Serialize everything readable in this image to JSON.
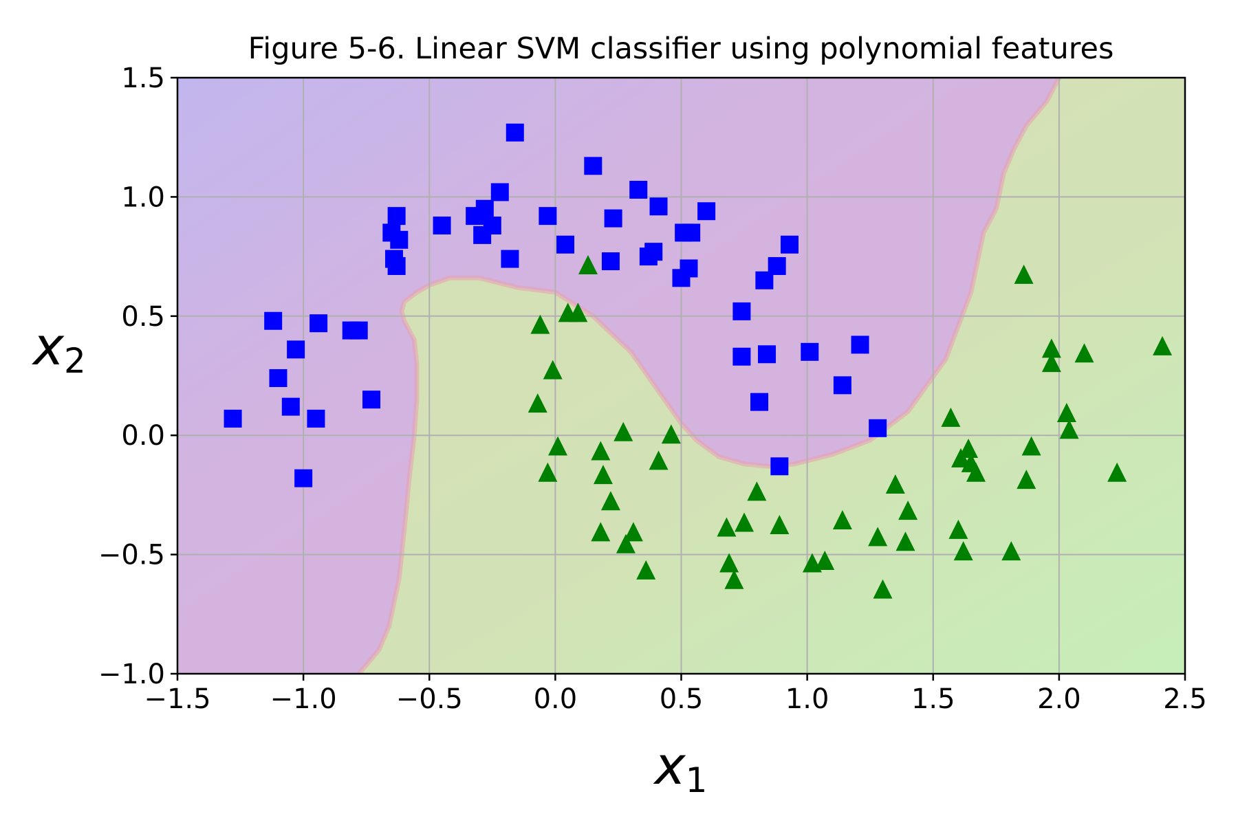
{
  "chart_data": {
    "type": "scatter",
    "title": "Figure 5-6. Linear SVM classifier using polynomial features",
    "xlabel_main": "x",
    "xlabel_sub": "1",
    "ylabel_main": "x",
    "ylabel_sub": "2",
    "xlim": [
      -1.5,
      2.5
    ],
    "ylim": [
      -1.0,
      1.5
    ],
    "xticks": [
      -1.5,
      -1.0,
      -0.5,
      0.0,
      0.5,
      1.0,
      1.5,
      2.0,
      2.5
    ],
    "yticks": [
      -1.0,
      -0.5,
      0.0,
      0.5,
      1.0,
      1.5
    ],
    "xtick_labels": [
      "−1.5",
      "−1.0",
      "−0.5",
      "0.0",
      "0.5",
      "1.0",
      "1.5",
      "2.0",
      "2.5"
    ],
    "ytick_labels": [
      "−1.0",
      "−0.5",
      "0.0",
      "0.5",
      "1.0",
      "1.5"
    ],
    "grid": true,
    "colors": {
      "class0_marker": "#0000ff",
      "class1_marker": "#008000",
      "class0_region": "#d3b4e0",
      "class1_region": "#d5e0b8",
      "boundary": "#e8a0b0"
    },
    "decision_boundary": {
      "x": [
        -0.78,
        -0.7,
        -0.66,
        -0.62,
        -0.6,
        -0.58,
        -0.56,
        -0.55,
        -0.55,
        -0.56,
        -0.58,
        -0.6,
        -0.61,
        -0.6,
        -0.55,
        -0.5,
        -0.42,
        -0.3,
        -0.15,
        0.0,
        0.15,
        0.3,
        0.4,
        0.5,
        0.56,
        0.65,
        0.75,
        0.85,
        0.95,
        1.1,
        1.25,
        1.4,
        1.55,
        1.65,
        1.7,
        1.75,
        1.76,
        1.78,
        1.82,
        1.87,
        1.95,
        2.0
      ],
      "y": [
        -1.0,
        -0.9,
        -0.8,
        -0.6,
        -0.4,
        -0.18,
        0.0,
        0.15,
        0.3,
        0.4,
        0.44,
        0.48,
        0.52,
        0.56,
        0.6,
        0.63,
        0.66,
        0.66,
        0.62,
        0.6,
        0.5,
        0.35,
        0.2,
        0.05,
        -0.02,
        -0.09,
        -0.12,
        -0.13,
        -0.12,
        -0.08,
        -0.02,
        0.1,
        0.32,
        0.6,
        0.85,
        0.95,
        1.0,
        1.1,
        1.2,
        1.3,
        1.4,
        1.5
      ]
    },
    "series": [
      {
        "name": "",
        "marker": "square",
        "points": [
          [
            -1.28,
            0.07
          ],
          [
            -1.12,
            0.48
          ],
          [
            -1.1,
            0.24
          ],
          [
            -1.05,
            0.12
          ],
          [
            -1.03,
            0.36
          ],
          [
            -1.0,
            -0.18
          ],
          [
            -0.95,
            0.07
          ],
          [
            -0.94,
            0.47
          ],
          [
            -0.81,
            0.44
          ],
          [
            -0.78,
            0.44
          ],
          [
            -0.73,
            0.15
          ],
          [
            -0.65,
            0.85
          ],
          [
            -0.64,
            0.74
          ],
          [
            -0.63,
            0.92
          ],
          [
            -0.62,
            0.82
          ],
          [
            -0.63,
            0.71
          ],
          [
            -0.45,
            0.88
          ],
          [
            -0.32,
            0.92
          ],
          [
            -0.29,
            0.84
          ],
          [
            -0.28,
            0.95
          ],
          [
            -0.25,
            0.88
          ],
          [
            -0.22,
            1.02
          ],
          [
            -0.18,
            0.74
          ],
          [
            -0.16,
            1.27
          ],
          [
            -0.03,
            0.92
          ],
          [
            0.04,
            0.8
          ],
          [
            0.15,
            1.13
          ],
          [
            0.22,
            0.73
          ],
          [
            0.23,
            0.91
          ],
          [
            0.33,
            1.03
          ],
          [
            0.37,
            0.75
          ],
          [
            0.39,
            0.77
          ],
          [
            0.41,
            0.96
          ],
          [
            0.5,
            0.66
          ],
          [
            0.51,
            0.85
          ],
          [
            0.53,
            0.7
          ],
          [
            0.54,
            0.85
          ],
          [
            0.6,
            0.94
          ],
          [
            0.74,
            0.52
          ],
          [
            0.74,
            0.33
          ],
          [
            0.81,
            0.14
          ],
          [
            0.83,
            0.65
          ],
          [
            0.84,
            0.34
          ],
          [
            0.88,
            0.71
          ],
          [
            0.89,
            -0.13
          ],
          [
            0.93,
            0.8
          ],
          [
            1.01,
            0.35
          ],
          [
            1.14,
            0.21
          ],
          [
            1.21,
            0.38
          ],
          [
            1.28,
            0.03
          ]
        ]
      },
      {
        "name": "",
        "marker": "triangle",
        "points": [
          [
            -0.06,
            0.46
          ],
          [
            -0.07,
            0.13
          ],
          [
            -0.03,
            -0.16
          ],
          [
            -0.01,
            0.27
          ],
          [
            0.01,
            -0.05
          ],
          [
            0.05,
            0.51
          ],
          [
            0.09,
            0.51
          ],
          [
            0.13,
            0.71
          ],
          [
            0.18,
            -0.41
          ],
          [
            0.18,
            -0.07
          ],
          [
            0.19,
            -0.17
          ],
          [
            0.22,
            -0.28
          ],
          [
            0.27,
            0.01
          ],
          [
            0.28,
            -0.46
          ],
          [
            0.31,
            -0.41
          ],
          [
            0.36,
            -0.57
          ],
          [
            0.41,
            -0.11
          ],
          [
            0.46,
            0.0
          ],
          [
            0.68,
            -0.39
          ],
          [
            0.69,
            -0.54
          ],
          [
            0.71,
            -0.61
          ],
          [
            0.75,
            -0.37
          ],
          [
            0.8,
            -0.24
          ],
          [
            0.89,
            -0.38
          ],
          [
            1.02,
            -0.54
          ],
          [
            1.07,
            -0.53
          ],
          [
            1.14,
            -0.36
          ],
          [
            1.28,
            -0.43
          ],
          [
            1.3,
            -0.65
          ],
          [
            1.35,
            -0.21
          ],
          [
            1.39,
            -0.45
          ],
          [
            1.4,
            -0.32
          ],
          [
            1.57,
            0.07
          ],
          [
            1.6,
            -0.4
          ],
          [
            1.61,
            -0.1
          ],
          [
            1.62,
            -0.49
          ],
          [
            1.64,
            -0.06
          ],
          [
            1.65,
            -0.12
          ],
          [
            1.67,
            -0.16
          ],
          [
            1.81,
            -0.49
          ],
          [
            1.86,
            0.67
          ],
          [
            1.87,
            -0.19
          ],
          [
            1.89,
            -0.05
          ],
          [
            1.97,
            0.3
          ],
          [
            1.97,
            0.36
          ],
          [
            2.03,
            0.09
          ],
          [
            2.04,
            0.02
          ],
          [
            2.1,
            0.34
          ],
          [
            2.23,
            -0.16
          ],
          [
            2.41,
            0.37
          ]
        ]
      }
    ]
  }
}
